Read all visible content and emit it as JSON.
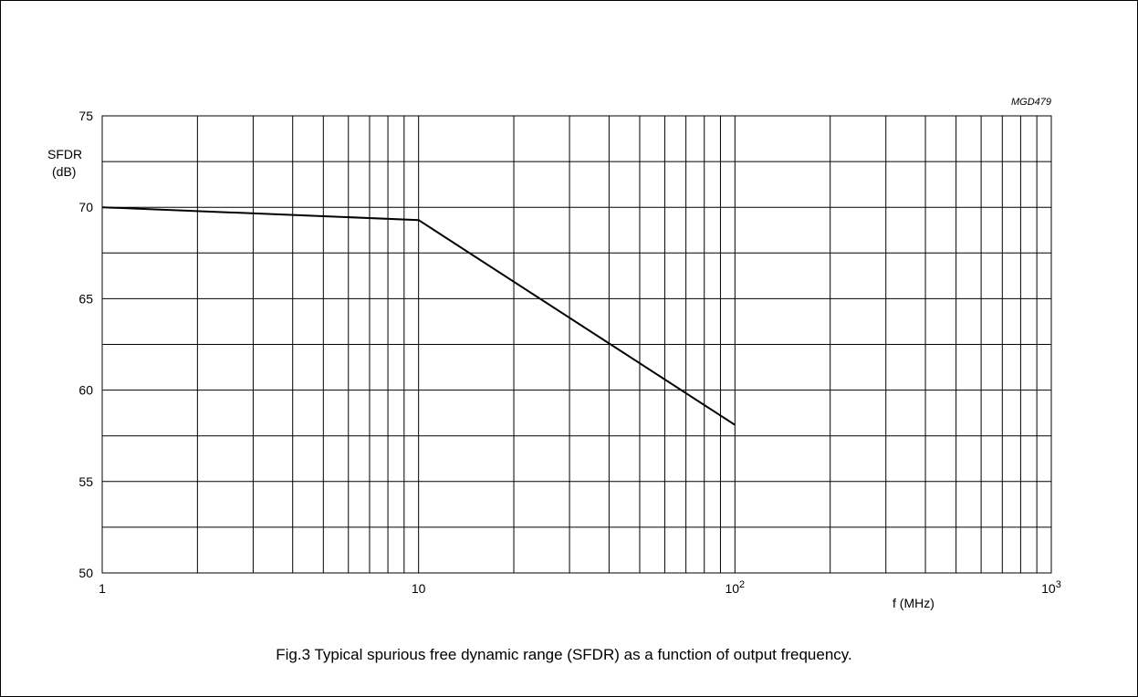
{
  "figure_code": "MGD479",
  "caption": "Fig.3  Typical spurious free dynamic range (SFDR) as a function of output frequency.",
  "chart_data": {
    "type": "line",
    "x_scale": "log",
    "xlim": [
      1,
      1000
    ],
    "ylim": [
      50,
      75
    ],
    "grid": true,
    "ylabel_line1": "SFDR",
    "ylabel_line2": "(dB)",
    "xlabel": "f (MHz)",
    "x_ticks": [
      {
        "value": 1,
        "base": "1",
        "exp": ""
      },
      {
        "value": 10,
        "base": "10",
        "exp": ""
      },
      {
        "value": 100,
        "base": "10",
        "exp": "2"
      },
      {
        "value": 1000,
        "base": "10",
        "exp": "3"
      }
    ],
    "y_ticks": [
      {
        "value": 50,
        "label": "50"
      },
      {
        "value": 55,
        "label": "55"
      },
      {
        "value": 60,
        "label": "60"
      },
      {
        "value": 65,
        "label": "65"
      },
      {
        "value": 70,
        "label": "70"
      },
      {
        "value": 75,
        "label": "75"
      }
    ],
    "series": [
      {
        "x": [
          1,
          10,
          100
        ],
        "y": [
          70,
          69.3,
          58.1
        ]
      }
    ]
  }
}
